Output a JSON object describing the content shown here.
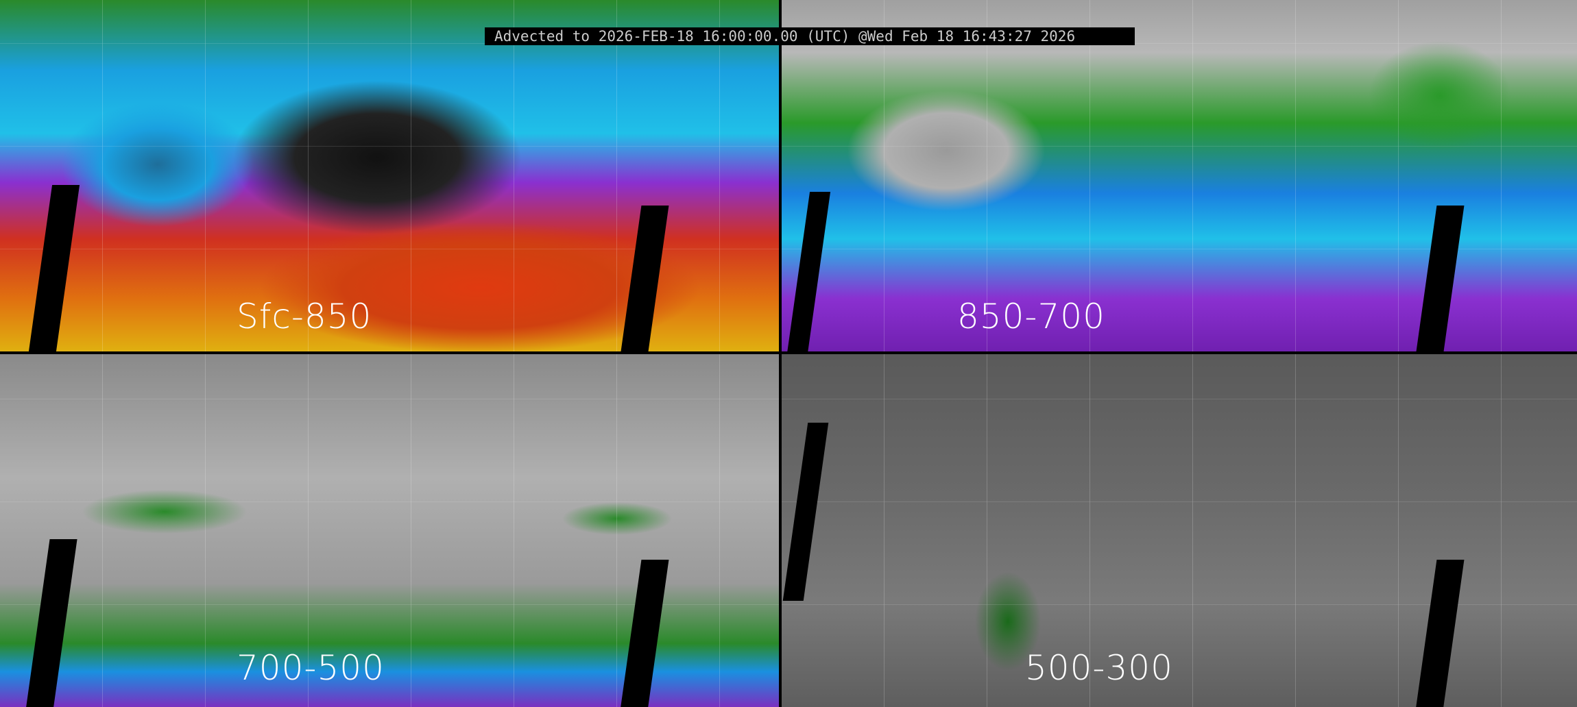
{
  "header": {
    "title": "Advected to 2026-FEB-18 16:00:00.00 (UTC) @Wed Feb 18 16:43:27 2026"
  },
  "panels": [
    {
      "label": "Sfc-850"
    },
    {
      "label": "850-700"
    },
    {
      "label": "700-500"
    },
    {
      "label": "500-300"
    }
  ]
}
